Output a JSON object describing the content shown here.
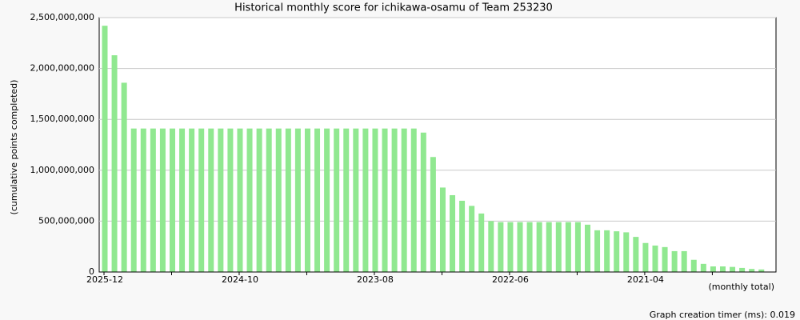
{
  "chart_data": {
    "type": "bar",
    "title": "Historical monthly score for ichikawa-osamu of Team 253230",
    "y_label": "(cumulative points completed)",
    "x_note": "(monthly total)",
    "footer": "Graph creation timer (ms): 0.019",
    "color": "#90e890",
    "grid": true,
    "categories": [
      "2025-12",
      null,
      null,
      null,
      null,
      null,
      null,
      null,
      null,
      null,
      null,
      null,
      null,
      null,
      "2024-10",
      null,
      null,
      null,
      null,
      null,
      null,
      null,
      null,
      null,
      null,
      null,
      null,
      null,
      "2023-08",
      null,
      null,
      null,
      null,
      null,
      null,
      null,
      null,
      null,
      null,
      null,
      null,
      null,
      "2022-06",
      null,
      null,
      null,
      null,
      null,
      null,
      null,
      null,
      null,
      null,
      null,
      null,
      null,
      "2021-04",
      null,
      null,
      null,
      null,
      null,
      null,
      null,
      null,
      null,
      null,
      null,
      null
    ],
    "values": [
      2420000000,
      2130000000,
      1860000000,
      1410000000,
      1410000000,
      1410000000,
      1410000000,
      1410000000,
      1410000000,
      1410000000,
      1410000000,
      1410000000,
      1410000000,
      1410000000,
      1410000000,
      1410000000,
      1410000000,
      1410000000,
      1410000000,
      1410000000,
      1410000000,
      1410000000,
      1410000000,
      1410000000,
      1410000000,
      1410000000,
      1410000000,
      1410000000,
      1410000000,
      1410000000,
      1410000000,
      1410000000,
      1410000000,
      1370000000,
      1130000000,
      830000000,
      755000000,
      700000000,
      650000000,
      575000000,
      500000000,
      490000000,
      490000000,
      490000000,
      490000000,
      490000000,
      490000000,
      490000000,
      490000000,
      490000000,
      465000000,
      410000000,
      410000000,
      400000000,
      390000000,
      345000000,
      285000000,
      260000000,
      245000000,
      205000000,
      205000000,
      120000000,
      80000000,
      55000000,
      55000000,
      50000000,
      40000000,
      30000000,
      25000000
    ],
    "ylim": [
      0,
      2500000000
    ],
    "yticks": [
      {
        "value": 0,
        "label": "0"
      },
      {
        "value": 500000000,
        "label": "500,000,000"
      },
      {
        "value": 1000000000,
        "label": "1,000,000,000"
      },
      {
        "value": 1500000000,
        "label": "1,500,000,000"
      },
      {
        "value": 2000000000,
        "label": "2,000,000,000"
      },
      {
        "value": 2500000000,
        "label": "2,500,000,000"
      }
    ]
  }
}
